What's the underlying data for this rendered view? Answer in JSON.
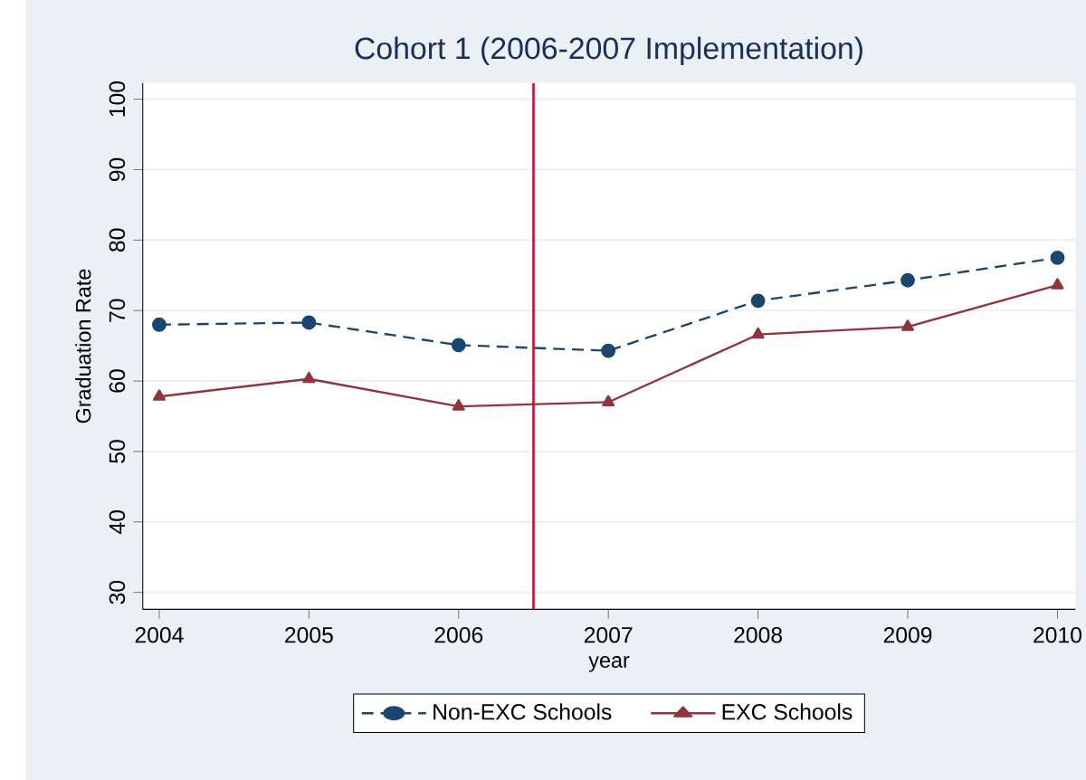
{
  "chart_data": {
    "type": "line",
    "title": "Cohort 1 (2006-2007 Implementation)",
    "xlabel": "year",
    "ylabel": "Graduation Rate",
    "x": [
      2004,
      2005,
      2006,
      2007,
      2008,
      2009,
      2010
    ],
    "series": [
      {
        "name": "Non-EXC Schools",
        "color": "#1a476f",
        "marker": "circle",
        "line_style": "dashed",
        "values": [
          68.0,
          68.3,
          65.1,
          64.3,
          71.4,
          74.3,
          77.5
        ]
      },
      {
        "name": "EXC Schools",
        "color": "#90353b",
        "marker": "triangle",
        "line_style": "solid",
        "values": [
          57.8,
          60.3,
          56.4,
          57.0,
          66.6,
          67.7,
          73.6
        ]
      }
    ],
    "xlim": [
      2003.89,
      2010.12
    ],
    "xticks": [
      2004,
      2005,
      2006,
      2007,
      2008,
      2009,
      2010
    ],
    "ylim": [
      27.6,
      102.3
    ],
    "yticks": [
      30,
      40,
      50,
      60,
      70,
      80,
      90,
      100
    ],
    "ref_lines": [
      {
        "axis": "x",
        "value": 2006.5,
        "color": "#c8102e"
      }
    ],
    "grid": "y",
    "legend": "bottom"
  }
}
